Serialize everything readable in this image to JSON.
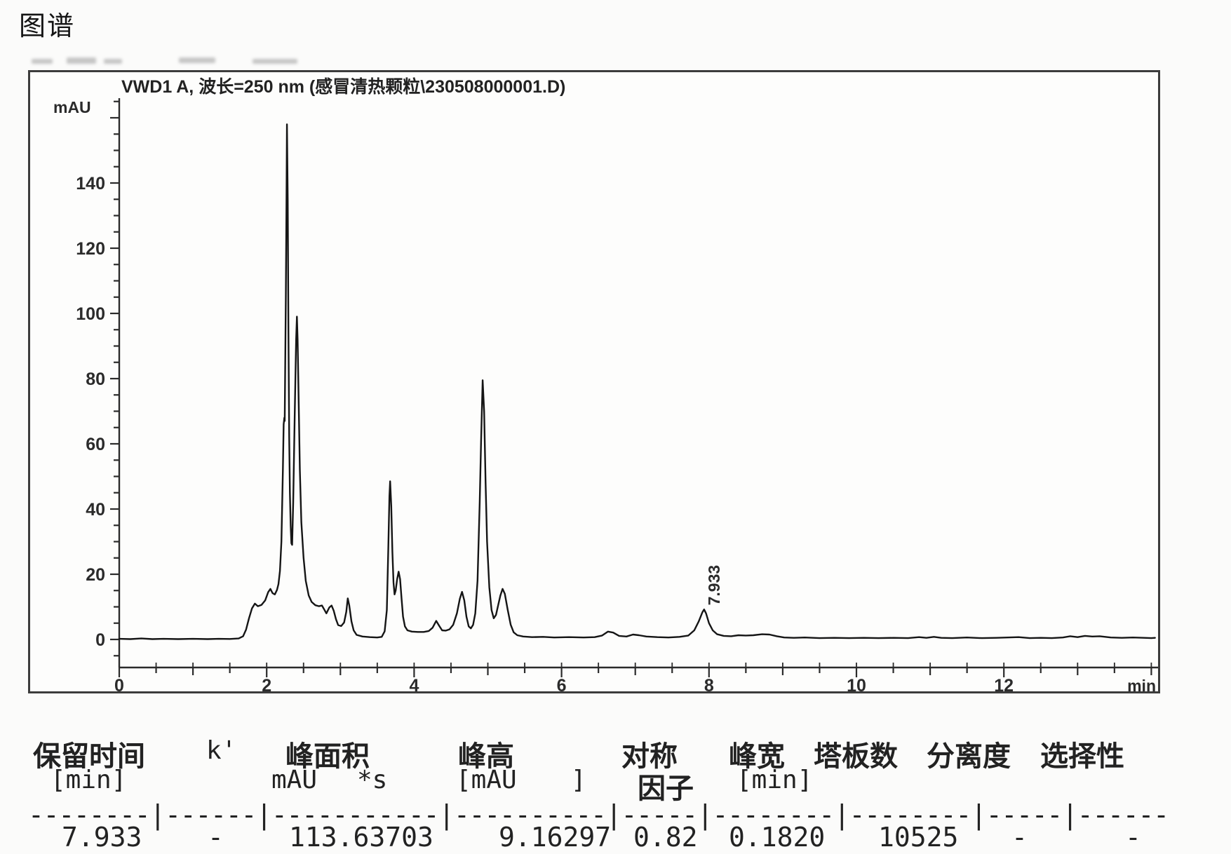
{
  "page": {
    "heading": "图谱"
  },
  "chart_data": {
    "type": "line",
    "title": "VWD1 A, 波长=250 nm (感冒清热颗粒\\230508000001.D)",
    "ylabel": "mAU",
    "xlabel": "min",
    "x_major_tick_labels": [
      0,
      2,
      4,
      6,
      8,
      10,
      12
    ],
    "x_minor_step": 0.5,
    "x_axis_max": 14.0,
    "y_tick_labels": [
      0,
      20,
      40,
      60,
      80,
      100,
      120,
      140
    ],
    "y_minor_step": 5,
    "y_tick_min": -5,
    "y_tick_max": 165,
    "grid": false,
    "peak_annotation": "7.933",
    "peak_annotation_t": 7.933,
    "peak_annotation_height_mau": 9.16297,
    "trace": [
      [
        0,
        0.2
      ],
      [
        0.15,
        0.1
      ],
      [
        0.3,
        0.3
      ],
      [
        0.45,
        0.1
      ],
      [
        0.6,
        0.2
      ],
      [
        0.8,
        0.1
      ],
      [
        1.0,
        0.2
      ],
      [
        1.2,
        0.1
      ],
      [
        1.35,
        0.2
      ],
      [
        1.5,
        0.15
      ],
      [
        1.62,
        0.3
      ],
      [
        1.68,
        1
      ],
      [
        1.72,
        3
      ],
      [
        1.76,
        6.5
      ],
      [
        1.8,
        9.5
      ],
      [
        1.84,
        11
      ],
      [
        1.88,
        10.2
      ],
      [
        1.93,
        10.6
      ],
      [
        1.98,
        12
      ],
      [
        2.02,
        14.5
      ],
      [
        2.05,
        15.5
      ],
      [
        2.08,
        14.2
      ],
      [
        2.11,
        13.8
      ],
      [
        2.14,
        15.2
      ],
      [
        2.16,
        17
      ],
      [
        2.18,
        21
      ],
      [
        2.2,
        30
      ],
      [
        2.22,
        52
      ],
      [
        2.23,
        66
      ],
      [
        2.24,
        68
      ],
      [
        2.245,
        67
      ],
      [
        2.26,
        105
      ],
      [
        2.27,
        140
      ],
      [
        2.275,
        158
      ],
      [
        2.285,
        135
      ],
      [
        2.295,
        95
      ],
      [
        2.305,
        62
      ],
      [
        2.315,
        45
      ],
      [
        2.325,
        35
      ],
      [
        2.335,
        29.5
      ],
      [
        2.345,
        29
      ],
      [
        2.36,
        42
      ],
      [
        2.38,
        68
      ],
      [
        2.4,
        92
      ],
      [
        2.41,
        99
      ],
      [
        2.42,
        92
      ],
      [
        2.435,
        72
      ],
      [
        2.45,
        52
      ],
      [
        2.47,
        36
      ],
      [
        2.5,
        25
      ],
      [
        2.53,
        18
      ],
      [
        2.57,
        13.5
      ],
      [
        2.61,
        11.5
      ],
      [
        2.66,
        10.5
      ],
      [
        2.71,
        10.2
      ],
      [
        2.75,
        10.4
      ],
      [
        2.78,
        9.2
      ],
      [
        2.81,
        8
      ],
      [
        2.85,
        9.8
      ],
      [
        2.88,
        10.4
      ],
      [
        2.91,
        8.8
      ],
      [
        2.94,
        6.2
      ],
      [
        2.97,
        4.4
      ],
      [
        3.01,
        4.1
      ],
      [
        3.05,
        5.2
      ],
      [
        3.08,
        8.5
      ],
      [
        3.1,
        12.6
      ],
      [
        3.12,
        10.5
      ],
      [
        3.15,
        5.5
      ],
      [
        3.18,
        2.8
      ],
      [
        3.22,
        1.4
      ],
      [
        3.3,
        0.9
      ],
      [
        3.4,
        0.7
      ],
      [
        3.5,
        0.6
      ],
      [
        3.56,
        0.8
      ],
      [
        3.6,
        2.5
      ],
      [
        3.63,
        9
      ],
      [
        3.65,
        28
      ],
      [
        3.665,
        44
      ],
      [
        3.675,
        48.5
      ],
      [
        3.69,
        41
      ],
      [
        3.705,
        27
      ],
      [
        3.72,
        17.5
      ],
      [
        3.735,
        13.8
      ],
      [
        3.75,
        15
      ],
      [
        3.77,
        18.5
      ],
      [
        3.79,
        20.8
      ],
      [
        3.81,
        18.5
      ],
      [
        3.83,
        12.5
      ],
      [
        3.85,
        7
      ],
      [
        3.875,
        4
      ],
      [
        3.91,
        2.8
      ],
      [
        3.97,
        2.4
      ],
      [
        4.05,
        2.3
      ],
      [
        4.13,
        2.3
      ],
      [
        4.2,
        2.6
      ],
      [
        4.25,
        3.6
      ],
      [
        4.3,
        5.7
      ],
      [
        4.34,
        4.2
      ],
      [
        4.38,
        2.8
      ],
      [
        4.43,
        2.7
      ],
      [
        4.48,
        3.1
      ],
      [
        4.53,
        4.5
      ],
      [
        4.58,
        8
      ],
      [
        4.62,
        12.5
      ],
      [
        4.65,
        14.6
      ],
      [
        4.68,
        12
      ],
      [
        4.71,
        7
      ],
      [
        4.74,
        4
      ],
      [
        4.77,
        3.4
      ],
      [
        4.8,
        4.5
      ],
      [
        4.83,
        8
      ],
      [
        4.86,
        18
      ],
      [
        4.89,
        42
      ],
      [
        4.91,
        62
      ],
      [
        4.93,
        79.5
      ],
      [
        4.95,
        70
      ],
      [
        4.97,
        48
      ],
      [
        4.99,
        30
      ],
      [
        5.02,
        16
      ],
      [
        5.05,
        9
      ],
      [
        5.08,
        6.5
      ],
      [
        5.11,
        7.5
      ],
      [
        5.14,
        10.5
      ],
      [
        5.17,
        13.5
      ],
      [
        5.2,
        15.5
      ],
      [
        5.23,
        14
      ],
      [
        5.27,
        9
      ],
      [
        5.31,
        4.5
      ],
      [
        5.35,
        2.2
      ],
      [
        5.4,
        1.3
      ],
      [
        5.48,
        0.9
      ],
      [
        5.6,
        0.7
      ],
      [
        5.75,
        0.8
      ],
      [
        5.9,
        0.6
      ],
      [
        6.1,
        0.7
      ],
      [
        6.3,
        0.6
      ],
      [
        6.45,
        0.7
      ],
      [
        6.55,
        1.2
      ],
      [
        6.63,
        2.4
      ],
      [
        6.7,
        2.1
      ],
      [
        6.78,
        1.1
      ],
      [
        6.88,
        0.9
      ],
      [
        6.97,
        1.5
      ],
      [
        7.05,
        1.3
      ],
      [
        7.15,
        0.9
      ],
      [
        7.3,
        0.7
      ],
      [
        7.45,
        0.6
      ],
      [
        7.6,
        0.8
      ],
      [
        7.72,
        1.2
      ],
      [
        7.8,
        2.8
      ],
      [
        7.86,
        5.5
      ],
      [
        7.91,
        8.3
      ],
      [
        7.933,
        9.2
      ],
      [
        7.96,
        8
      ],
      [
        8.0,
        5
      ],
      [
        8.05,
        2.8
      ],
      [
        8.11,
        1.6
      ],
      [
        8.2,
        1.1
      ],
      [
        8.3,
        1.0
      ],
      [
        8.4,
        1.3
      ],
      [
        8.5,
        1.2
      ],
      [
        8.6,
        1.3
      ],
      [
        8.72,
        1.6
      ],
      [
        8.82,
        1.5
      ],
      [
        8.92,
        1.0
      ],
      [
        9.02,
        0.6
      ],
      [
        9.15,
        0.5
      ],
      [
        9.3,
        0.6
      ],
      [
        9.5,
        0.4
      ],
      [
        9.7,
        0.5
      ],
      [
        9.9,
        0.4
      ],
      [
        10.1,
        0.5
      ],
      [
        10.3,
        0.4
      ],
      [
        10.5,
        0.5
      ],
      [
        10.7,
        0.4
      ],
      [
        10.85,
        0.7
      ],
      [
        10.95,
        0.5
      ],
      [
        11.05,
        0.8
      ],
      [
        11.15,
        0.5
      ],
      [
        11.3,
        0.4
      ],
      [
        11.5,
        0.6
      ],
      [
        11.7,
        0.4
      ],
      [
        11.9,
        0.5
      ],
      [
        12.05,
        0.6
      ],
      [
        12.2,
        0.7
      ],
      [
        12.35,
        0.4
      ],
      [
        12.5,
        0.5
      ],
      [
        12.65,
        0.4
      ],
      [
        12.8,
        0.6
      ],
      [
        12.9,
        1.0
      ],
      [
        13.0,
        0.7
      ],
      [
        13.1,
        1.1
      ],
      [
        13.2,
        0.9
      ],
      [
        13.3,
        1.0
      ],
      [
        13.45,
        0.6
      ],
      [
        13.6,
        0.5
      ],
      [
        13.75,
        0.6
      ],
      [
        13.9,
        0.5
      ],
      [
        14.0,
        0.4
      ],
      [
        14.05,
        0.5
      ]
    ]
  },
  "peak_table": {
    "header_row1": [
      "保留时间",
      "k'",
      "峰面积",
      "峰高",
      "对称",
      "峰宽",
      "塔板数",
      "分离度",
      "选择性"
    ],
    "header_row2": [
      "[min]",
      "mAU",
      "*s",
      "[mAU",
      "]",
      "因子",
      "[min]"
    ],
    "separator": "--------|------|-----------|----------|-----|--------|--------|-----|------",
    "data_row": [
      "7.933",
      "-",
      "113.63703",
      "9.16297",
      "0.82",
      "0.1820",
      "10525",
      "-",
      "-"
    ]
  }
}
